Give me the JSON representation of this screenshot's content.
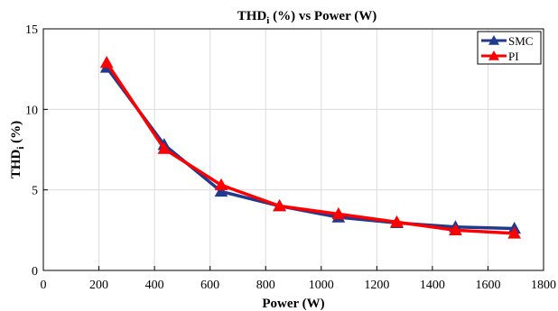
{
  "chart_data": {
    "type": "line",
    "title_main": "THD",
    "title_sub": "i",
    "title_rest": " (%) vs Power (W)",
    "xlabel": "Power (W)",
    "ylabel_main": "THD",
    "ylabel_sub": "i",
    "ylabel_rest": " (%)",
    "xlim": [
      0,
      1800
    ],
    "ylim": [
      0,
      15
    ],
    "xticks": [
      "0",
      "200",
      "400",
      "600",
      "800",
      "1000",
      "1200",
      "1400",
      "1600",
      "1800"
    ],
    "yticks": [
      "0",
      "5",
      "10",
      "15"
    ],
    "grid": true,
    "legend_position": "top-right",
    "series": [
      {
        "name": "SMC",
        "color": "#1f3a8f",
        "x": [
          228,
          435,
          640,
          850,
          1062,
          1272,
          1483,
          1695
        ],
        "y": [
          12.6,
          7.8,
          4.9,
          4.0,
          3.3,
          2.95,
          2.7,
          2.6
        ]
      },
      {
        "name": "PI",
        "color": "#ff0000",
        "x": [
          228,
          435,
          640,
          850,
          1062,
          1272,
          1483,
          1695
        ],
        "y": [
          12.9,
          7.55,
          5.3,
          4.0,
          3.5,
          3.0,
          2.5,
          2.3
        ]
      }
    ]
  }
}
